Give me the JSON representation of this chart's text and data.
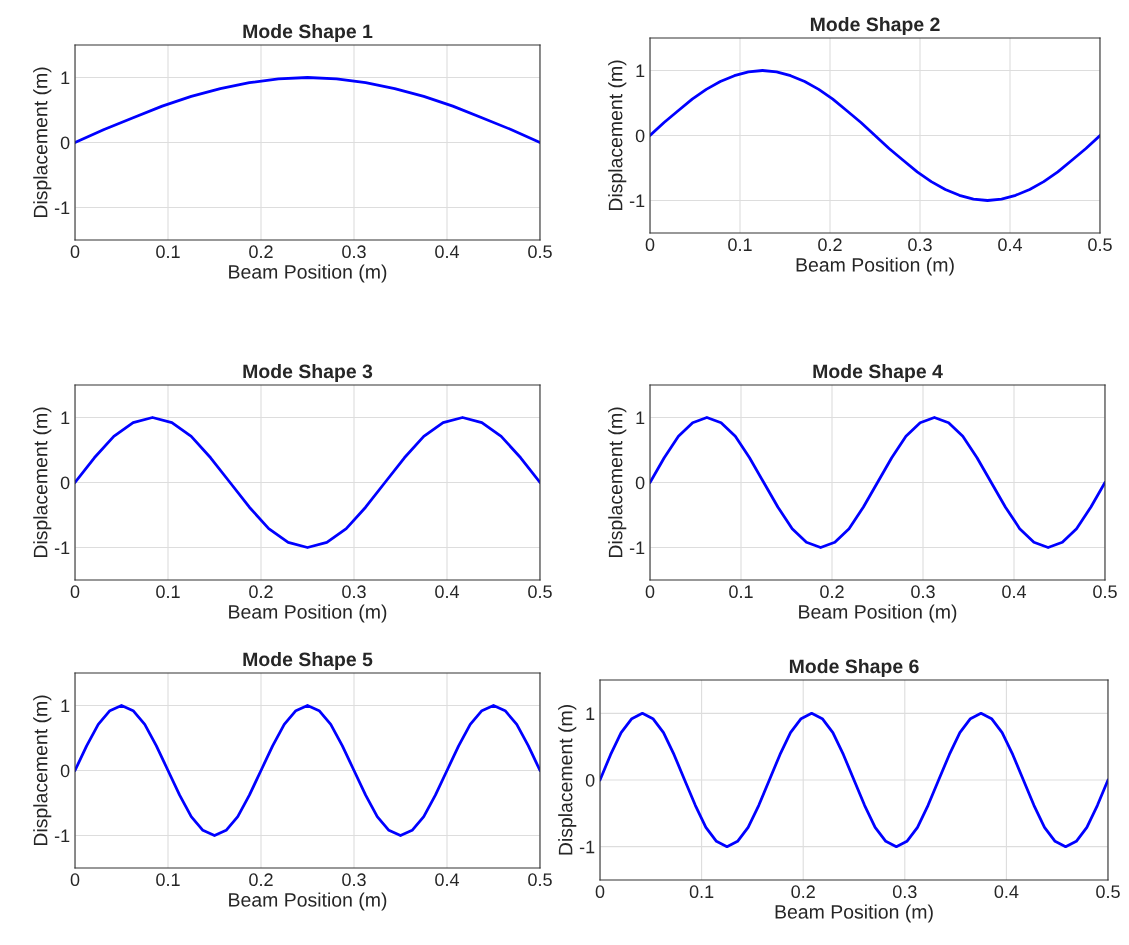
{
  "chart_data": [
    {
      "type": "line",
      "title": "Mode Shape 1",
      "xlabel": "Beam Position (m)",
      "ylabel": "Displacement (m)",
      "xlim": [
        0,
        0.5
      ],
      "xticks": [
        0,
        0.1,
        0.2,
        0.3,
        0.4,
        0.5
      ],
      "ylim": [
        -1.5,
        1.5
      ],
      "yticks": [
        -1,
        0,
        1
      ],
      "grid": true,
      "series": [
        {
          "color": "#0000ff",
          "x": [
            0,
            0.03125,
            0.0625,
            0.09375,
            0.125,
            0.15625,
            0.1875,
            0.21875,
            0.25,
            0.28125,
            0.3125,
            0.34375,
            0.375,
            0.40625,
            0.4375,
            0.46875,
            0.5
          ],
          "values": [
            0,
            0.2,
            0.38,
            0.56,
            0.71,
            0.83,
            0.92,
            0.98,
            1,
            0.98,
            0.92,
            0.83,
            0.71,
            0.56,
            0.38,
            0.2,
            0
          ]
        }
      ]
    },
    {
      "type": "line",
      "title": "Mode Shape 2",
      "xlabel": "Beam Position (m)",
      "ylabel": "Displacement (m)",
      "xlim": [
        0,
        0.5
      ],
      "xticks": [
        0,
        0.1,
        0.2,
        0.3,
        0.4,
        0.5
      ],
      "ylim": [
        -1.5,
        1.5
      ],
      "yticks": [
        -1,
        0,
        1
      ],
      "grid": true,
      "series": [
        {
          "color": "#0000ff",
          "x": [
            0,
            0.015625,
            0.03125,
            0.046875,
            0.0625,
            0.078125,
            0.09375,
            0.109375,
            0.125,
            0.140625,
            0.15625,
            0.171875,
            0.1875,
            0.203125,
            0.21875,
            0.234375,
            0.25,
            0.265625,
            0.28125,
            0.296875,
            0.3125,
            0.328125,
            0.34375,
            0.359375,
            0.375,
            0.390625,
            0.40625,
            0.421875,
            0.4375,
            0.453125,
            0.46875,
            0.484375,
            0.5
          ],
          "values": [
            0,
            0.2,
            0.38,
            0.56,
            0.71,
            0.83,
            0.92,
            0.98,
            1,
            0.98,
            0.92,
            0.83,
            0.71,
            0.56,
            0.38,
            0.2,
            0,
            -0.2,
            -0.38,
            -0.56,
            -0.71,
            -0.83,
            -0.92,
            -0.98,
            -1,
            -0.98,
            -0.92,
            -0.83,
            -0.71,
            -0.56,
            -0.38,
            -0.2,
            0
          ]
        }
      ]
    },
    {
      "type": "line",
      "title": "Mode Shape 3",
      "xlabel": "Beam Position (m)",
      "ylabel": "Displacement (m)",
      "xlim": [
        0,
        0.5
      ],
      "xticks": [
        0,
        0.1,
        0.2,
        0.3,
        0.4,
        0.5
      ],
      "ylim": [
        -1.5,
        1.5
      ],
      "yticks": [
        -1,
        0,
        1
      ],
      "grid": true,
      "series": [
        {
          "color": "#0000ff",
          "x": [
            0,
            0.0208,
            0.0417,
            0.0625,
            0.0833,
            0.1042,
            0.125,
            0.1458,
            0.1667,
            0.1875,
            0.2083,
            0.2292,
            0.25,
            0.2708,
            0.2917,
            0.3125,
            0.3333,
            0.3542,
            0.375,
            0.3958,
            0.4167,
            0.4375,
            0.4583,
            0.4792,
            0.5
          ],
          "values": [
            0,
            0.38,
            0.71,
            0.92,
            1,
            0.92,
            0.71,
            0.38,
            0,
            -0.38,
            -0.71,
            -0.92,
            -1,
            -0.92,
            -0.71,
            -0.38,
            0,
            0.38,
            0.71,
            0.92,
            1,
            0.92,
            0.71,
            0.38,
            0
          ]
        }
      ]
    },
    {
      "type": "line",
      "title": "Mode Shape 4",
      "xlabel": "Beam Position (m)",
      "ylabel": "Displacement (m)",
      "xlim": [
        0,
        0.5
      ],
      "xticks": [
        0,
        0.1,
        0.2,
        0.3,
        0.4,
        0.5
      ],
      "ylim": [
        -1.5,
        1.5
      ],
      "yticks": [
        -1,
        0,
        1
      ],
      "grid": true,
      "series": [
        {
          "color": "#0000ff",
          "x": [
            0,
            0.015625,
            0.03125,
            0.046875,
            0.0625,
            0.078125,
            0.09375,
            0.109375,
            0.125,
            0.140625,
            0.15625,
            0.171875,
            0.1875,
            0.203125,
            0.21875,
            0.234375,
            0.25,
            0.265625,
            0.28125,
            0.296875,
            0.3125,
            0.328125,
            0.34375,
            0.359375,
            0.375,
            0.390625,
            0.40625,
            0.421875,
            0.4375,
            0.453125,
            0.46875,
            0.484375,
            0.5
          ],
          "values": [
            0,
            0.38,
            0.71,
            0.92,
            1,
            0.92,
            0.71,
            0.38,
            0,
            -0.38,
            -0.71,
            -0.92,
            -1,
            -0.92,
            -0.71,
            -0.38,
            0,
            0.38,
            0.71,
            0.92,
            1,
            0.92,
            0.71,
            0.38,
            0,
            -0.38,
            -0.71,
            -0.92,
            -1,
            -0.92,
            -0.71,
            -0.38,
            0
          ]
        }
      ]
    },
    {
      "type": "line",
      "title": "Mode Shape 5",
      "xlabel": "Beam Position (m)",
      "ylabel": "Displacement (m)",
      "xlim": [
        0,
        0.5
      ],
      "xticks": [
        0,
        0.1,
        0.2,
        0.3,
        0.4,
        0.5
      ],
      "ylim": [
        -1.5,
        1.5
      ],
      "yticks": [
        -1,
        0,
        1
      ],
      "grid": true,
      "series": [
        {
          "color": "#0000ff",
          "x": [
            0,
            0.0125,
            0.025,
            0.0375,
            0.05,
            0.0625,
            0.075,
            0.0875,
            0.1,
            0.1125,
            0.125,
            0.1375,
            0.15,
            0.1625,
            0.175,
            0.1875,
            0.2,
            0.2125,
            0.225,
            0.2375,
            0.25,
            0.2625,
            0.275,
            0.2875,
            0.3,
            0.3125,
            0.325,
            0.3375,
            0.35,
            0.3625,
            0.375,
            0.3875,
            0.4,
            0.4125,
            0.425,
            0.4375,
            0.45,
            0.4625,
            0.475,
            0.4875,
            0.5
          ],
          "values": [
            0,
            0.38,
            0.71,
            0.92,
            1,
            0.92,
            0.71,
            0.38,
            0,
            -0.38,
            -0.71,
            -0.92,
            -1,
            -0.92,
            -0.71,
            -0.38,
            0,
            0.38,
            0.71,
            0.92,
            1,
            0.92,
            0.71,
            0.38,
            0,
            -0.38,
            -0.71,
            -0.92,
            -1,
            -0.92,
            -0.71,
            -0.38,
            0,
            0.38,
            0.71,
            0.92,
            1,
            0.92,
            0.71,
            0.38,
            0
          ]
        }
      ]
    },
    {
      "type": "line",
      "title": "Mode Shape 6",
      "xlabel": "Beam Position (m)",
      "ylabel": "Displacement (m)",
      "xlim": [
        0,
        0.5
      ],
      "xticks": [
        0,
        0.1,
        0.2,
        0.3,
        0.4,
        0.5
      ],
      "ylim": [
        -1.5,
        1.5
      ],
      "yticks": [
        -1,
        0,
        1
      ],
      "grid": true,
      "series": [
        {
          "color": "#0000ff",
          "x": [
            0,
            0.0104,
            0.0208,
            0.0313,
            0.0417,
            0.0521,
            0.0625,
            0.0729,
            0.0833,
            0.0938,
            0.1042,
            0.1146,
            0.125,
            0.1354,
            0.1458,
            0.1563,
            0.1667,
            0.1771,
            0.1875,
            0.1979,
            0.2083,
            0.2188,
            0.2292,
            0.2396,
            0.25,
            0.2604,
            0.2708,
            0.2813,
            0.2917,
            0.3021,
            0.3125,
            0.3229,
            0.3333,
            0.3438,
            0.3542,
            0.3646,
            0.375,
            0.3854,
            0.3958,
            0.4063,
            0.4167,
            0.4271,
            0.4375,
            0.4479,
            0.4583,
            0.4688,
            0.4792,
            0.4896,
            0.5
          ],
          "values": [
            0,
            0.38,
            0.71,
            0.92,
            1,
            0.92,
            0.71,
            0.38,
            0,
            -0.38,
            -0.71,
            -0.92,
            -1,
            -0.92,
            -0.71,
            -0.38,
            0,
            0.38,
            0.71,
            0.92,
            1,
            0.92,
            0.71,
            0.38,
            0,
            -0.38,
            -0.71,
            -0.92,
            -1,
            -0.92,
            -0.71,
            -0.38,
            0,
            0.38,
            0.71,
            0.92,
            1,
            0.92,
            0.71,
            0.38,
            0,
            -0.38,
            -0.71,
            -0.92,
            -1,
            -0.92,
            -0.71,
            -0.38,
            0
          ]
        }
      ]
    }
  ]
}
